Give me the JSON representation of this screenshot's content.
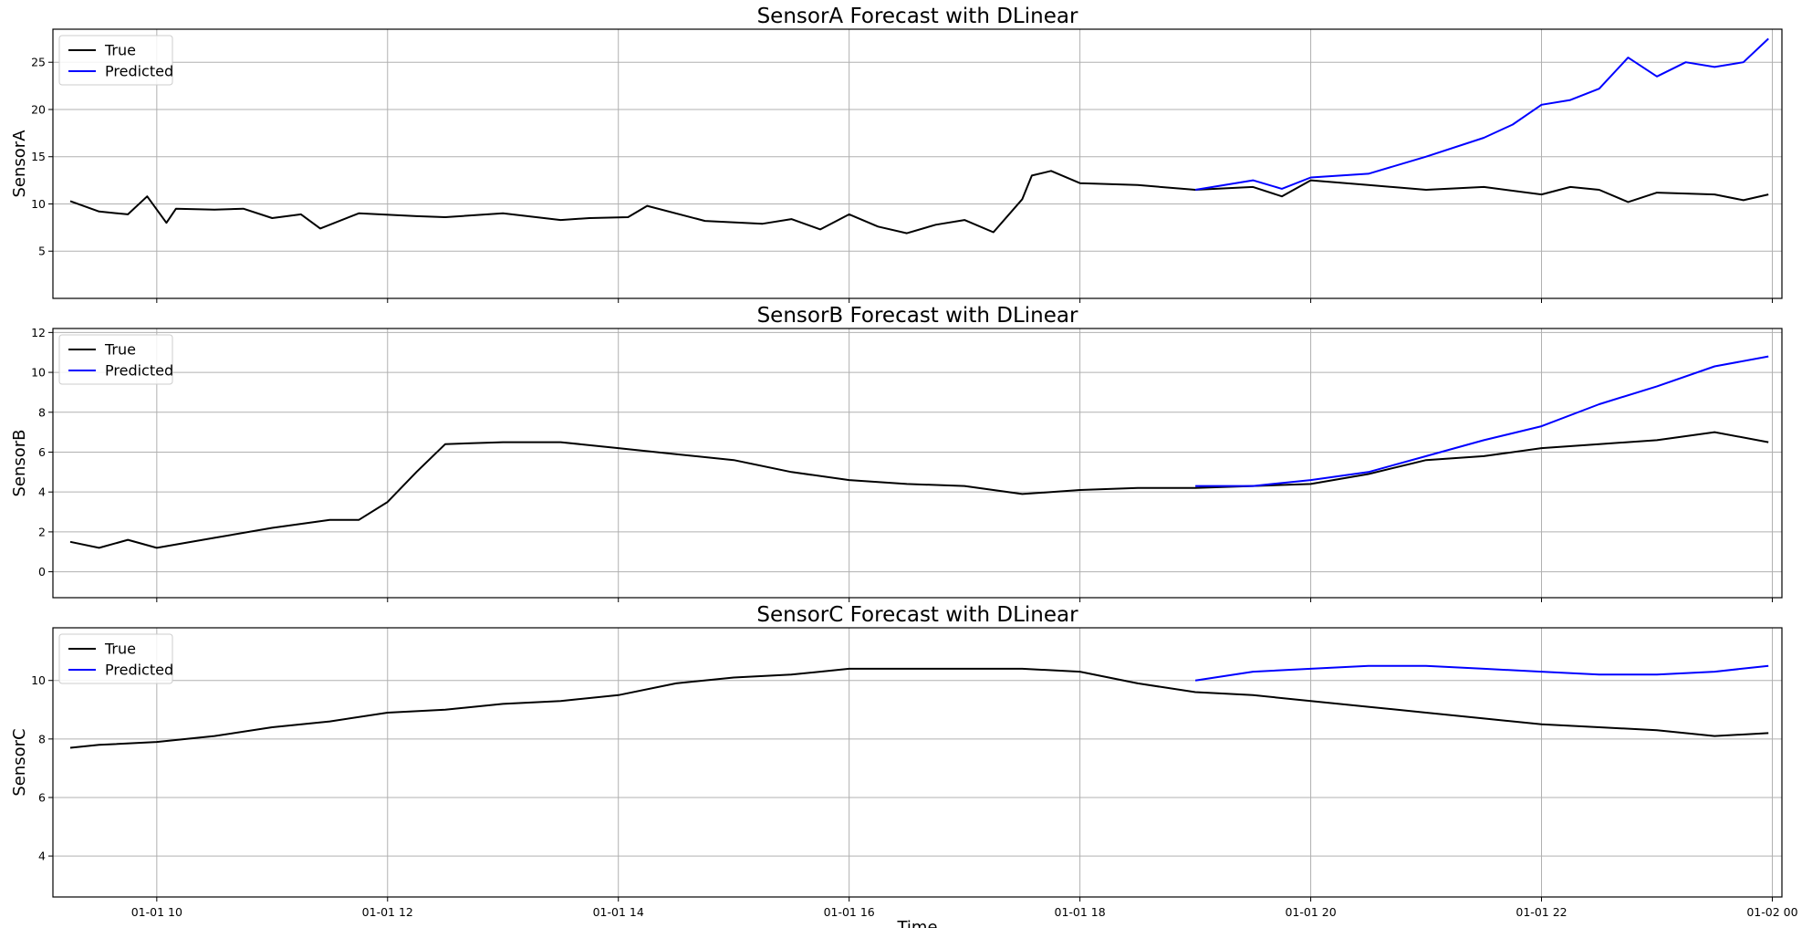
{
  "chart_data": [
    {
      "type": "line",
      "title": "SensorA Forecast with DLinear",
      "ylabel": "SensorA",
      "xlabel": "",
      "ylim": [
        0,
        28.5
      ],
      "yticks": [
        5,
        10,
        15,
        20,
        25
      ],
      "legend": "top-left",
      "series": [
        {
          "name": "True",
          "color": "#000000",
          "points": [
            [
              "2024-01-01 09:15",
              10.3
            ],
            [
              "2024-01-01 09:30",
              9.2
            ],
            [
              "2024-01-01 09:45",
              8.9
            ],
            [
              "2024-01-01 09:55",
              10.8
            ],
            [
              "2024-01-01 10:05",
              8.0
            ],
            [
              "2024-01-01 10:10",
              9.5
            ],
            [
              "2024-01-01 10:30",
              9.4
            ],
            [
              "2024-01-01 10:45",
              9.5
            ],
            [
              "2024-01-01 11:00",
              8.5
            ],
            [
              "2024-01-01 11:15",
              8.9
            ],
            [
              "2024-01-01 11:25",
              7.4
            ],
            [
              "2024-01-01 11:45",
              9.0
            ],
            [
              "2024-01-01 12:15",
              8.7
            ],
            [
              "2024-01-01 12:30",
              8.6
            ],
            [
              "2024-01-01 13:00",
              9.0
            ],
            [
              "2024-01-01 13:30",
              8.3
            ],
            [
              "2024-01-01 13:45",
              8.5
            ],
            [
              "2024-01-01 14:05",
              8.6
            ],
            [
              "2024-01-01 14:15",
              9.8
            ],
            [
              "2024-01-01 14:45",
              8.2
            ],
            [
              "2024-01-01 15:15",
              7.9
            ],
            [
              "2024-01-01 15:30",
              8.4
            ],
            [
              "2024-01-01 15:45",
              7.3
            ],
            [
              "2024-01-01 16:00",
              8.9
            ],
            [
              "2024-01-01 16:15",
              7.6
            ],
            [
              "2024-01-01 16:30",
              6.9
            ],
            [
              "2024-01-01 16:45",
              7.8
            ],
            [
              "2024-01-01 17:00",
              8.3
            ],
            [
              "2024-01-01 17:15",
              7.0
            ],
            [
              "2024-01-01 17:30",
              10.5
            ],
            [
              "2024-01-01 17:35",
              13.0
            ],
            [
              "2024-01-01 17:45",
              13.5
            ],
            [
              "2024-01-01 18:00",
              12.2
            ],
            [
              "2024-01-01 18:30",
              12.0
            ],
            [
              "2024-01-01 19:00",
              11.5
            ],
            [
              "2024-01-01 19:30",
              11.8
            ],
            [
              "2024-01-01 19:45",
              10.8
            ],
            [
              "2024-01-01 20:00",
              12.5
            ],
            [
              "2024-01-01 20:30",
              12.0
            ],
            [
              "2024-01-01 21:00",
              11.5
            ],
            [
              "2024-01-01 21:30",
              11.8
            ],
            [
              "2024-01-01 22:00",
              11.0
            ],
            [
              "2024-01-01 22:15",
              11.8
            ],
            [
              "2024-01-01 22:30",
              11.5
            ],
            [
              "2024-01-01 22:45",
              10.2
            ],
            [
              "2024-01-01 23:00",
              11.2
            ],
            [
              "2024-01-01 23:30",
              11.0
            ],
            [
              "2024-01-01 23:45",
              10.4
            ],
            [
              "2024-01-01 23:58",
              11.0
            ]
          ]
        },
        {
          "name": "Predicted",
          "color": "#0000ff",
          "points": [
            [
              "2024-01-01 19:00",
              11.5
            ],
            [
              "2024-01-01 19:30",
              12.5
            ],
            [
              "2024-01-01 19:45",
              11.6
            ],
            [
              "2024-01-01 20:00",
              12.8
            ],
            [
              "2024-01-01 20:30",
              13.2
            ],
            [
              "2024-01-01 21:00",
              15.0
            ],
            [
              "2024-01-01 21:30",
              17.0
            ],
            [
              "2024-01-01 21:45",
              18.4
            ],
            [
              "2024-01-01 22:00",
              20.5
            ],
            [
              "2024-01-01 22:15",
              21.0
            ],
            [
              "2024-01-01 22:30",
              22.2
            ],
            [
              "2024-01-01 22:45",
              25.5
            ],
            [
              "2024-01-01 23:00",
              23.5
            ],
            [
              "2024-01-01 23:15",
              25.0
            ],
            [
              "2024-01-01 23:30",
              24.5
            ],
            [
              "2024-01-01 23:45",
              25.0
            ],
            [
              "2024-01-01 23:58",
              27.5
            ]
          ]
        }
      ]
    },
    {
      "type": "line",
      "title": "SensorB Forecast with DLinear",
      "ylabel": "SensorB",
      "xlabel": "",
      "ylim": [
        -1.3,
        12.2
      ],
      "yticks": [
        0,
        2,
        4,
        6,
        8,
        10,
        12
      ],
      "legend": "top-left",
      "series": [
        {
          "name": "True",
          "color": "#000000",
          "points": [
            [
              "2024-01-01 09:15",
              1.5
            ],
            [
              "2024-01-01 09:30",
              1.2
            ],
            [
              "2024-01-01 09:45",
              1.6
            ],
            [
              "2024-01-01 10:00",
              1.2
            ],
            [
              "2024-01-01 10:30",
              1.7
            ],
            [
              "2024-01-01 11:00",
              2.2
            ],
            [
              "2024-01-01 11:30",
              2.6
            ],
            [
              "2024-01-01 11:45",
              2.6
            ],
            [
              "2024-01-01 12:00",
              3.5
            ],
            [
              "2024-01-01 12:15",
              5.0
            ],
            [
              "2024-01-01 12:30",
              6.4
            ],
            [
              "2024-01-01 13:00",
              6.5
            ],
            [
              "2024-01-01 13:30",
              6.5
            ],
            [
              "2024-01-01 14:00",
              6.2
            ],
            [
              "2024-01-01 14:30",
              5.9
            ],
            [
              "2024-01-01 15:00",
              5.6
            ],
            [
              "2024-01-01 15:30",
              5.0
            ],
            [
              "2024-01-01 16:00",
              4.6
            ],
            [
              "2024-01-01 16:30",
              4.4
            ],
            [
              "2024-01-01 17:00",
              4.3
            ],
            [
              "2024-01-01 17:30",
              3.9
            ],
            [
              "2024-01-01 18:00",
              4.1
            ],
            [
              "2024-01-01 18:30",
              4.2
            ],
            [
              "2024-01-01 19:00",
              4.2
            ],
            [
              "2024-01-01 19:30",
              4.3
            ],
            [
              "2024-01-01 20:00",
              4.4
            ],
            [
              "2024-01-01 20:30",
              4.9
            ],
            [
              "2024-01-01 21:00",
              5.6
            ],
            [
              "2024-01-01 21:30",
              5.8
            ],
            [
              "2024-01-01 22:00",
              6.2
            ],
            [
              "2024-01-01 22:30",
              6.4
            ],
            [
              "2024-01-01 23:00",
              6.6
            ],
            [
              "2024-01-01 23:30",
              7.0
            ],
            [
              "2024-01-01 23:58",
              6.5
            ]
          ]
        },
        {
          "name": "Predicted",
          "color": "#0000ff",
          "points": [
            [
              "2024-01-01 19:00",
              4.3
            ],
            [
              "2024-01-01 19:30",
              4.3
            ],
            [
              "2024-01-01 20:00",
              4.6
            ],
            [
              "2024-01-01 20:30",
              5.0
            ],
            [
              "2024-01-01 21:00",
              5.8
            ],
            [
              "2024-01-01 21:30",
              6.6
            ],
            [
              "2024-01-01 22:00",
              7.3
            ],
            [
              "2024-01-01 22:30",
              8.4
            ],
            [
              "2024-01-01 23:00",
              9.3
            ],
            [
              "2024-01-01 23:30",
              10.3
            ],
            [
              "2024-01-01 23:58",
              10.8
            ]
          ]
        }
      ]
    },
    {
      "type": "line",
      "title": "SensorC Forecast with DLinear",
      "ylabel": "SensorC",
      "xlabel": "Time",
      "ylim": [
        2.6,
        11.8
      ],
      "yticks": [
        4,
        6,
        8,
        10
      ],
      "legend": "top-left",
      "series": [
        {
          "name": "True",
          "color": "#000000",
          "points": [
            [
              "2024-01-01 09:15",
              7.7
            ],
            [
              "2024-01-01 09:30",
              7.8
            ],
            [
              "2024-01-01 10:00",
              7.9
            ],
            [
              "2024-01-01 10:30",
              8.1
            ],
            [
              "2024-01-01 11:00",
              8.4
            ],
            [
              "2024-01-01 11:30",
              8.6
            ],
            [
              "2024-01-01 12:00",
              8.9
            ],
            [
              "2024-01-01 12:30",
              9.0
            ],
            [
              "2024-01-01 13:00",
              9.2
            ],
            [
              "2024-01-01 13:30",
              9.3
            ],
            [
              "2024-01-01 14:00",
              9.5
            ],
            [
              "2024-01-01 14:30",
              9.9
            ],
            [
              "2024-01-01 15:00",
              10.1
            ],
            [
              "2024-01-01 15:30",
              10.2
            ],
            [
              "2024-01-01 16:00",
              10.4
            ],
            [
              "2024-01-01 16:30",
              10.4
            ],
            [
              "2024-01-01 17:00",
              10.4
            ],
            [
              "2024-01-01 17:30",
              10.4
            ],
            [
              "2024-01-01 18:00",
              10.3
            ],
            [
              "2024-01-01 18:30",
              9.9
            ],
            [
              "2024-01-01 19:00",
              9.6
            ],
            [
              "2024-01-01 19:30",
              9.5
            ],
            [
              "2024-01-01 20:00",
              9.3
            ],
            [
              "2024-01-01 20:30",
              9.1
            ],
            [
              "2024-01-01 21:00",
              8.9
            ],
            [
              "2024-01-01 21:30",
              8.7
            ],
            [
              "2024-01-01 22:00",
              8.5
            ],
            [
              "2024-01-01 22:30",
              8.4
            ],
            [
              "2024-01-01 23:00",
              8.3
            ],
            [
              "2024-01-01 23:30",
              8.1
            ],
            [
              "2024-01-01 23:58",
              8.2
            ]
          ]
        },
        {
          "name": "Predicted",
          "color": "#0000ff",
          "points": [
            [
              "2024-01-01 19:00",
              10.0
            ],
            [
              "2024-01-01 19:30",
              10.3
            ],
            [
              "2024-01-01 20:00",
              10.4
            ],
            [
              "2024-01-01 20:30",
              10.5
            ],
            [
              "2024-01-01 21:00",
              10.5
            ],
            [
              "2024-01-01 21:30",
              10.4
            ],
            [
              "2024-01-01 22:00",
              10.3
            ],
            [
              "2024-01-01 22:30",
              10.2
            ],
            [
              "2024-01-01 23:00",
              10.2
            ],
            [
              "2024-01-01 23:30",
              10.3
            ],
            [
              "2024-01-01 23:58",
              10.5
            ]
          ]
        }
      ]
    }
  ],
  "x_axis": {
    "range": [
      "2024-01-01 09:06",
      "2024-01-02 00:05"
    ],
    "ticks": [
      {
        "t": "2024-01-01 10:00",
        "label": "01-01 10"
      },
      {
        "t": "2024-01-01 12:00",
        "label": "01-01 12"
      },
      {
        "t": "2024-01-01 14:00",
        "label": "01-01 14"
      },
      {
        "t": "2024-01-01 16:00",
        "label": "01-01 16"
      },
      {
        "t": "2024-01-01 18:00",
        "label": "01-01 18"
      },
      {
        "t": "2024-01-01 20:00",
        "label": "01-01 20"
      },
      {
        "t": "2024-01-01 22:00",
        "label": "01-01 22"
      },
      {
        "t": "2024-01-02 00:00",
        "label": "01-02 00"
      }
    ]
  }
}
